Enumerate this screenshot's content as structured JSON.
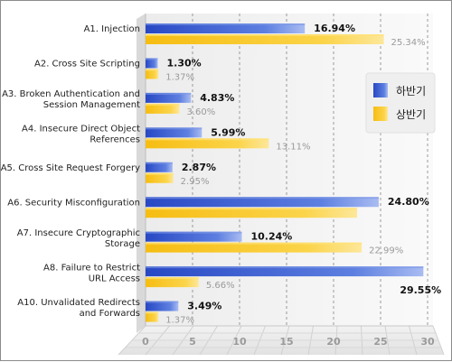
{
  "chart_data": {
    "type": "bar",
    "orientation": "horizontal",
    "categories": [
      "A1. Injection",
      "A2. Cross Site Scripting",
      "A3. Broken Authentication and Session Management",
      "A4. Insecure Direct Object References",
      "A5. Cross Site Request Forgery",
      "A6. Security Misconfiguration",
      "A7. Insecure Cryptographic Storage",
      "A8. Failure to Restrict URL Access",
      "A10. Unvalidated Redirects and Forwards"
    ],
    "category_lines": [
      [
        "A1. Injection"
      ],
      [
        "A2. Cross Site Scripting"
      ],
      [
        "A3. Broken Authentication and",
        "Session Management"
      ],
      [
        "A4. Insecure Direct Object",
        "References"
      ],
      [
        "A5. Cross Site Request Forgery"
      ],
      [
        "A6. Security Misconfiguration"
      ],
      [
        "A7. Insecure Cryptographic",
        "Storage"
      ],
      [
        "A8. Failure to Restrict",
        "URL Access"
      ],
      [
        "A10. Unvalidated Redirects",
        "and Forwards"
      ]
    ],
    "series": [
      {
        "name": "하반기",
        "values": [
          16.94,
          1.3,
          4.83,
          5.99,
          2.87,
          24.8,
          10.24,
          29.55,
          3.49
        ],
        "labels": [
          "16.94%",
          "1.30%",
          "4.83%",
          "5.99%",
          "2.87%",
          "24.80%",
          "10.24%",
          "29.55%",
          "3.49%"
        ],
        "color": "#3a5fcd"
      },
      {
        "name": "상반기",
        "values": [
          25.34,
          1.37,
          3.6,
          13.11,
          2.95,
          22.5,
          22.99,
          5.66,
          1.37
        ],
        "labels": [
          "25.34%",
          "1.37%",
          "3.60%",
          "13.11%",
          "2.95%",
          "",
          "22.99%",
          "5.66%",
          "1.37%"
        ],
        "color": "#f5c518"
      }
    ],
    "xlim": [
      0,
      30
    ],
    "xticks": [
      "0",
      "5",
      "10",
      "15",
      "20",
      "25",
      "30"
    ],
    "grid": true,
    "legend_position": "right"
  }
}
